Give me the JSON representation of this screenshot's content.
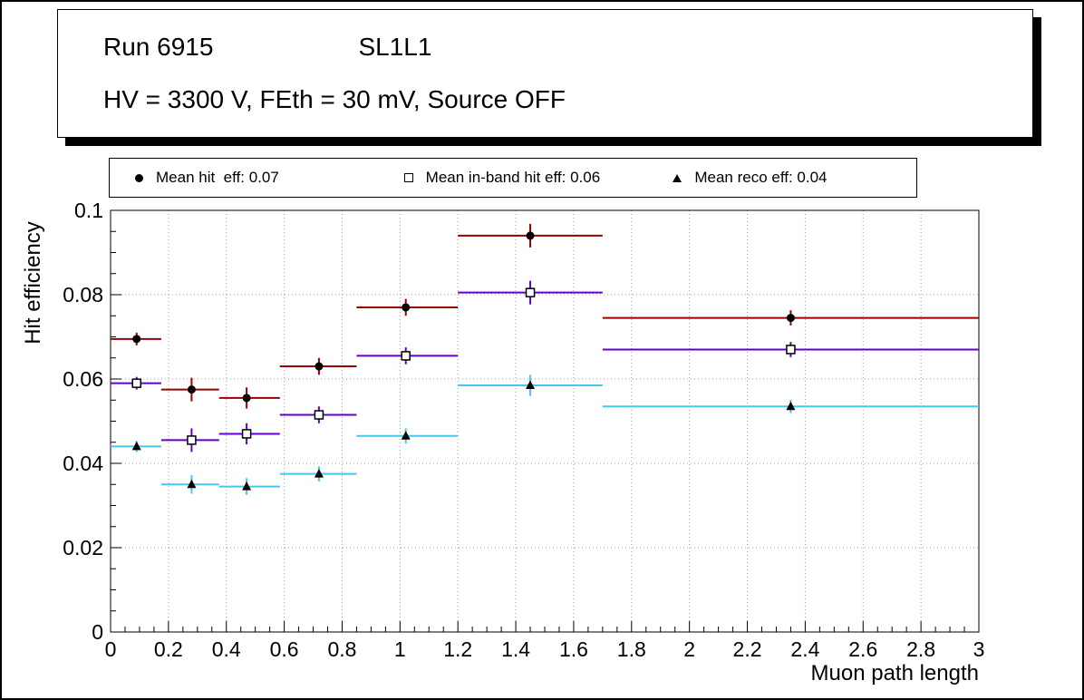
{
  "title": {
    "run": "Run 6915",
    "chamber": "SL1L1",
    "conditions": "HV = 3300 V, FEth = 30 mV, Source OFF"
  },
  "legend": {
    "entries": [
      {
        "label": "Mean hit  eff: 0.07",
        "marker": "filled-circle"
      },
      {
        "label": "Mean in-band hit eff: 0.06",
        "marker": "open-square"
      },
      {
        "label": "Mean reco eff: 0.04",
        "marker": "filled-triangle"
      }
    ]
  },
  "chart_data": {
    "type": "scatter",
    "title": "",
    "xlabel": "Muon path length",
    "ylabel": "Hit efficiency",
    "xlim": [
      0,
      3
    ],
    "ylim": [
      0,
      0.1
    ],
    "grid": true,
    "legend_position": "top",
    "xticks": [
      0,
      0.2,
      0.4,
      0.6,
      0.8,
      1,
      1.2,
      1.4,
      1.6,
      1.8,
      2,
      2.2,
      2.4,
      2.6,
      2.8,
      3
    ],
    "xtick_labels": [
      "0",
      "0.2",
      "0.4",
      "0.6",
      "0.8",
      "1",
      "1.2",
      "1.4",
      "1.6",
      "1.8",
      "2",
      "2.2",
      "2.4",
      "2.6",
      "2.8",
      "3"
    ],
    "yticks": [
      0,
      0.02,
      0.04,
      0.06,
      0.08,
      0.1
    ],
    "ytick_labels": [
      "0",
      "0.02",
      "0.04",
      "0.06",
      "0.08",
      "0.1"
    ],
    "bin_edges": [
      0,
      0.175,
      0.375,
      0.585,
      0.85,
      1.2,
      1.7,
      3
    ],
    "series": [
      {
        "name": "Mean hit eff",
        "mean": 0.07,
        "marker": "filled-circle",
        "marker_color": "#000000",
        "line_color": "#990000",
        "x": [
          0.09,
          0.28,
          0.47,
          0.72,
          1.02,
          1.45,
          2.35
        ],
        "y": [
          0.0695,
          0.0575,
          0.0555,
          0.063,
          0.077,
          0.094,
          0.0745
        ],
        "yerr": [
          0.0015,
          0.0028,
          0.0025,
          0.002,
          0.002,
          0.0028,
          0.0018
        ],
        "xlow": [
          0,
          0.175,
          0.375,
          0.585,
          0.85,
          1.2,
          1.7
        ],
        "xhigh": [
          0.175,
          0.375,
          0.585,
          0.85,
          1.2,
          1.7,
          3
        ]
      },
      {
        "name": "Mean in-band hit eff",
        "mean": 0.06,
        "marker": "open-square",
        "marker_color": "#000000",
        "line_color": "#5f00d0",
        "x": [
          0.09,
          0.28,
          0.47,
          0.72,
          1.02,
          1.45,
          2.35
        ],
        "y": [
          0.059,
          0.0455,
          0.047,
          0.0515,
          0.0655,
          0.0805,
          0.067
        ],
        "yerr": [
          0.0015,
          0.0028,
          0.0025,
          0.002,
          0.002,
          0.0028,
          0.0018
        ],
        "xlow": [
          0,
          0.175,
          0.375,
          0.585,
          0.85,
          1.2,
          1.7
        ],
        "xhigh": [
          0.175,
          0.375,
          0.585,
          0.85,
          1.2,
          1.7,
          3
        ]
      },
      {
        "name": "Mean reco eff",
        "mean": 0.04,
        "marker": "filled-triangle",
        "marker_color": "#000000",
        "line_color": "#45c8f0",
        "x": [
          0.09,
          0.28,
          0.47,
          0.72,
          1.02,
          1.45,
          2.35
        ],
        "y": [
          0.044,
          0.035,
          0.0345,
          0.0375,
          0.0465,
          0.0585,
          0.0535
        ],
        "yerr": [
          0.0013,
          0.0022,
          0.002,
          0.0018,
          0.0018,
          0.0025,
          0.0016
        ],
        "xlow": [
          0,
          0.175,
          0.375,
          0.585,
          0.85,
          1.2,
          1.7
        ],
        "xhigh": [
          0.175,
          0.375,
          0.585,
          0.85,
          1.2,
          1.7,
          3
        ]
      }
    ]
  }
}
